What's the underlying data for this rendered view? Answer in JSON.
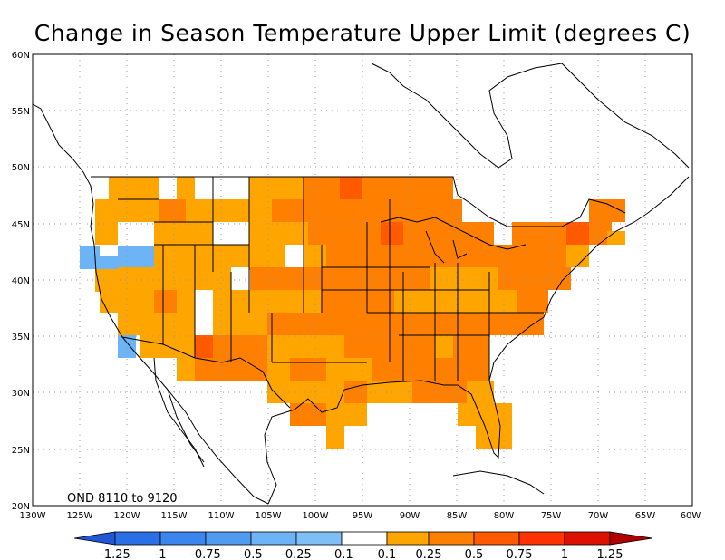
{
  "title": "Change in Season Temperature Upper Limit (degrees C)",
  "period_label": "OND 8110 to 9120",
  "lat_labels": [
    "60N",
    "55N",
    "50N",
    "45N",
    "40N",
    "35N",
    "30N",
    "25N",
    "20N"
  ],
  "lon_labels": [
    "130W",
    "125W",
    "120W",
    "115W",
    "110W",
    "105W",
    "100W",
    "95W",
    "90W",
    "85W",
    "80W",
    "75W",
    "70W",
    "65W",
    "60W"
  ],
  "colorbar": {
    "labels": [
      "-1.25",
      "-1",
      "-0.75",
      "-0.5",
      "-0.25",
      "-0.1",
      "0.1",
      "0.25",
      "0.5",
      "0.75",
      "1",
      "1.25"
    ],
    "colors": [
      "#2156d6",
      "#2a6fe6",
      "#3b86ee",
      "#4f9bf2",
      "#6db4f6",
      "#ffffff",
      "#ffa500",
      "#ff8000",
      "#ff5a00",
      "#ff3200",
      "#dd1000",
      "#b00000",
      "#a00000"
    ]
  },
  "map": {
    "extent": {
      "lon_min": -130,
      "lon_max": -60,
      "lat_min": 20,
      "lat_max": 60
    },
    "grid_lines": "dotted",
    "cell_size_deg": 2.5
  }
}
